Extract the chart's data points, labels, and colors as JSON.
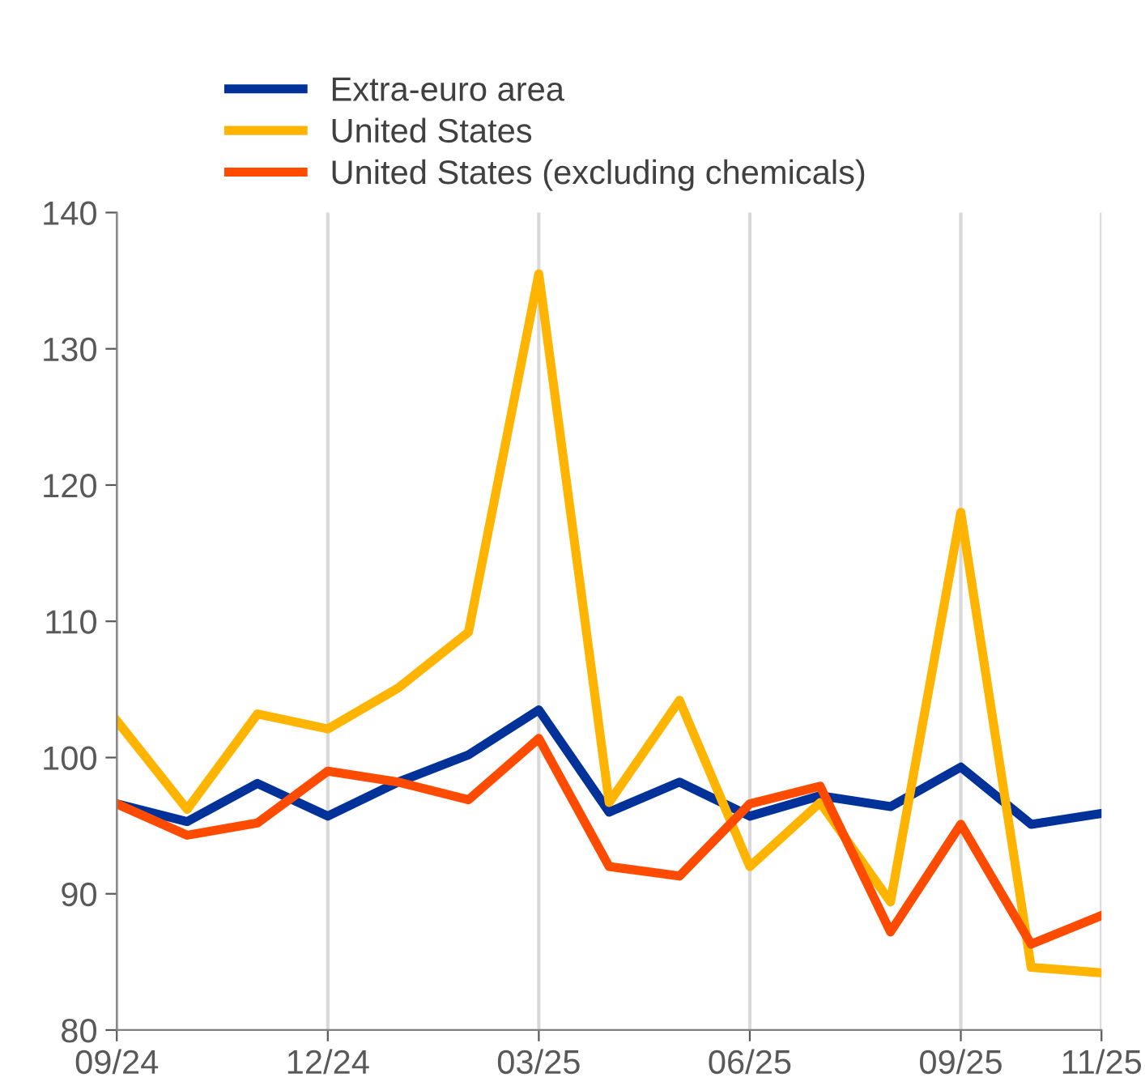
{
  "chart_data": {
    "type": "line",
    "categories": [
      "09/24",
      null,
      null,
      "12/24",
      null,
      null,
      "03/25",
      null,
      null,
      "06/25",
      null,
      null,
      "09/25",
      null,
      "11/25"
    ],
    "series": [
      {
        "name": "Extra-euro area",
        "color": "#003299",
        "values": [
          96.6,
          95.3,
          98.1,
          95.7,
          98.2,
          100.2,
          103.5,
          96.0,
          98.2,
          95.7,
          97.2,
          96.4,
          99.3,
          95.1,
          95.9
        ]
      },
      {
        "name": "United States",
        "color": "#ffb400",
        "values": [
          102.7,
          96.2,
          103.2,
          102.1,
          105.1,
          109.2,
          135.5,
          96.7,
          104.2,
          92.0,
          96.7,
          89.4,
          118.0,
          84.6,
          84.2
        ]
      },
      {
        "name": "United States (excluding chemicals)",
        "color": "#ff4b00",
        "values": [
          96.6,
          94.3,
          95.2,
          99.0,
          98.2,
          96.9,
          101.4,
          92.0,
          91.3,
          96.6,
          97.9,
          87.2,
          95.1,
          86.3,
          88.4
        ]
      }
    ],
    "ylim": [
      80,
      140
    ],
    "yticks": [
      80,
      90,
      100,
      110,
      120,
      130,
      140
    ],
    "grid": "x",
    "legend": "top",
    "marker": "none",
    "line_style": "solid"
  }
}
